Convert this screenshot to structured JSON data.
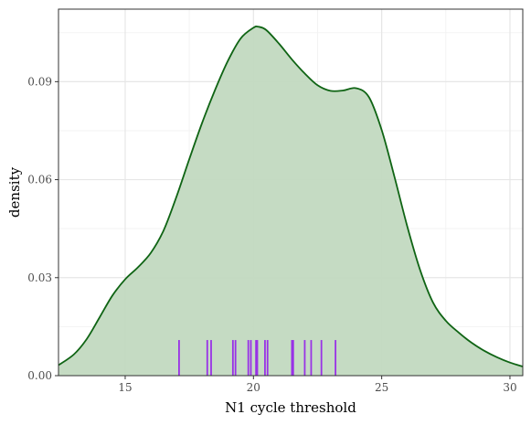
{
  "chart_data": {
    "type": "area",
    "xlabel": "N1 cycle threshold",
    "ylabel": "density",
    "xlim": [
      12.4,
      30.5
    ],
    "ylim": [
      0.0,
      0.1122
    ],
    "x_ticks": [
      15,
      20,
      25,
      30
    ],
    "x_tick_labels": [
      "15",
      "20",
      "25",
      "30"
    ],
    "y_ticks": [
      0.0,
      0.03,
      0.06,
      0.09
    ],
    "y_tick_labels": [
      "0.00",
      "0.03",
      "0.06",
      "0.09"
    ],
    "grid": true,
    "density_curve": {
      "x": [
        12.4,
        13.0,
        13.5,
        14.0,
        14.5,
        15.0,
        15.5,
        16.0,
        16.5,
        17.0,
        17.5,
        18.0,
        18.5,
        19.0,
        19.5,
        20.0,
        20.2,
        20.5,
        21.0,
        21.5,
        22.0,
        22.5,
        23.0,
        23.5,
        24.0,
        24.5,
        25.0,
        25.5,
        26.0,
        26.5,
        27.0,
        27.5,
        28.0,
        28.5,
        29.0,
        29.5,
        30.0,
        30.5
      ],
      "y": [
        0.0032,
        0.0065,
        0.0112,
        0.0178,
        0.0245,
        0.0295,
        0.0332,
        0.0376,
        0.0445,
        0.0548,
        0.0663,
        0.0774,
        0.0874,
        0.0963,
        0.1032,
        0.1065,
        0.1068,
        0.1058,
        0.1016,
        0.0968,
        0.0925,
        0.0889,
        0.0872,
        0.0873,
        0.088,
        0.0853,
        0.0752,
        0.0608,
        0.0456,
        0.0323,
        0.0224,
        0.0168,
        0.0132,
        0.0101,
        0.0076,
        0.0056,
        0.004,
        0.0028
      ]
    },
    "rug": [
      17.1,
      18.2,
      18.35,
      19.2,
      19.3,
      19.8,
      19.9,
      20.1,
      20.15,
      20.45,
      20.55,
      21.5,
      21.55,
      22.0,
      22.25,
      22.65,
      23.2
    ],
    "rug_height": 0.0109,
    "colors": {
      "fill": "#c2d9c0",
      "line": "#0f6414",
      "rug": "#9932e6",
      "grid_major": "#e6e6e6",
      "grid_minor": "#f3f3f3",
      "panel_border": "#333333"
    }
  }
}
